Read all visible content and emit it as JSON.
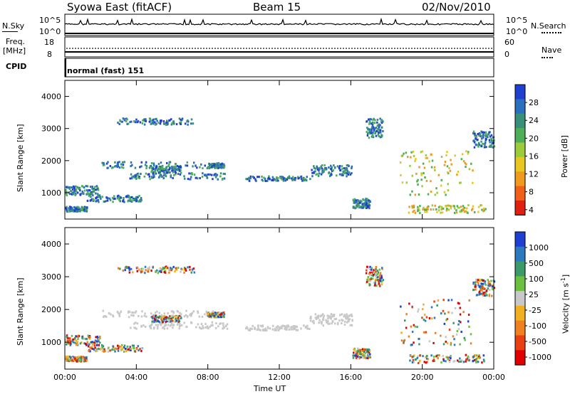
{
  "header": {
    "title": "Syowa East (fitACF)",
    "beam": "Beam 15",
    "date": "02/Nov/2010"
  },
  "top_panels": {
    "nsky_label": "N.Sky",
    "nsky_ticks": [
      "10^5",
      "10^0"
    ],
    "nsearch_label": "N.Search",
    "nsearch_ticks": [
      "10^5",
      "10^0"
    ],
    "freq_label": "Freq.",
    "freq_unit": "[MHz]",
    "freq_ticks": [
      "18",
      "8"
    ],
    "nave_label": "Nave",
    "nave_ticks": [
      "60",
      "0"
    ],
    "cpid_label": "CPID",
    "cpid_value": "normal (fast) 151"
  },
  "colors": {
    "power": [
      "#1f3fd0",
      "#2b6fbf",
      "#3a8f7a",
      "#4fae5a",
      "#9ccc3c",
      "#e8c820",
      "#f09a20",
      "#f06018",
      "#e02010"
    ],
    "velocity": [
      "#1f3fd0",
      "#2b7abf",
      "#3c9a6a",
      "#6cc040",
      "#c8c8c8",
      "#f0b020",
      "#f08020",
      "#e84010",
      "#e00000"
    ]
  },
  "chart_data": [
    {
      "type": "heatmap",
      "name": "power",
      "ylabel": "Slant Range [km]",
      "yticks": [
        "4000",
        "3000",
        "2000",
        "1000"
      ],
      "ylim": [
        180,
        4500
      ],
      "colorbar_label": "Power [dB]",
      "colorbar_ticks": [
        "28",
        "24",
        "20",
        "16",
        "12",
        "8",
        "4"
      ]
    },
    {
      "type": "heatmap",
      "name": "velocity",
      "ylabel": "Slant Range [km]",
      "yticks": [
        "4000",
        "3000",
        "2000",
        "1000"
      ],
      "ylim": [
        180,
        4500
      ],
      "colorbar_label": "Velocity [m s-1]",
      "colorbar_ticks": [
        "1000",
        "500",
        "100",
        "25",
        "-25",
        "-100",
        "-500",
        "-1000"
      ],
      "xlabel": "Time UT",
      "xticks": [
        "00:00",
        "04:00",
        "08:00",
        "12:00",
        "16:00",
        "20:00",
        "00:00"
      ]
    }
  ]
}
